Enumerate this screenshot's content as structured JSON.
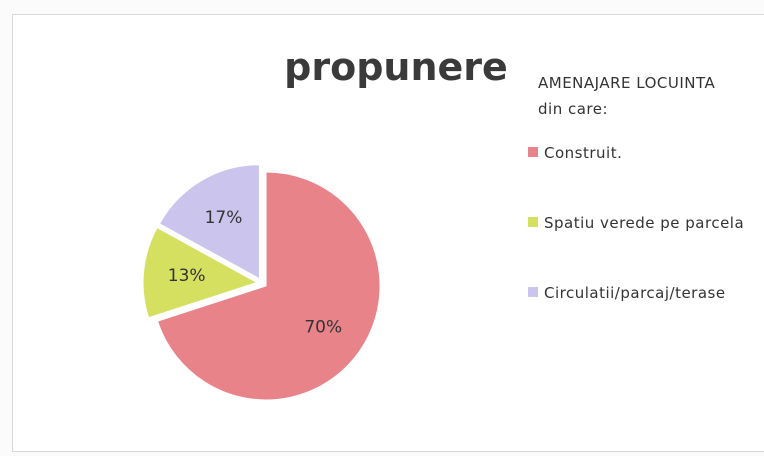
{
  "chart_data": {
    "type": "pie",
    "title": "propunere",
    "legend_title": [
      "AMENAJARE LOCUINTA",
      "din care:"
    ],
    "categories": [
      "Construit.",
      "Spatiu verede pe parcela",
      "Circulatii/parcaj/terase"
    ],
    "values": [
      70,
      13,
      17
    ],
    "value_labels": [
      "70%",
      "13%",
      "17%"
    ],
    "colors": [
      "#e8838a",
      "#d6e060",
      "#cbc5ee"
    ],
    "legend": "right"
  }
}
